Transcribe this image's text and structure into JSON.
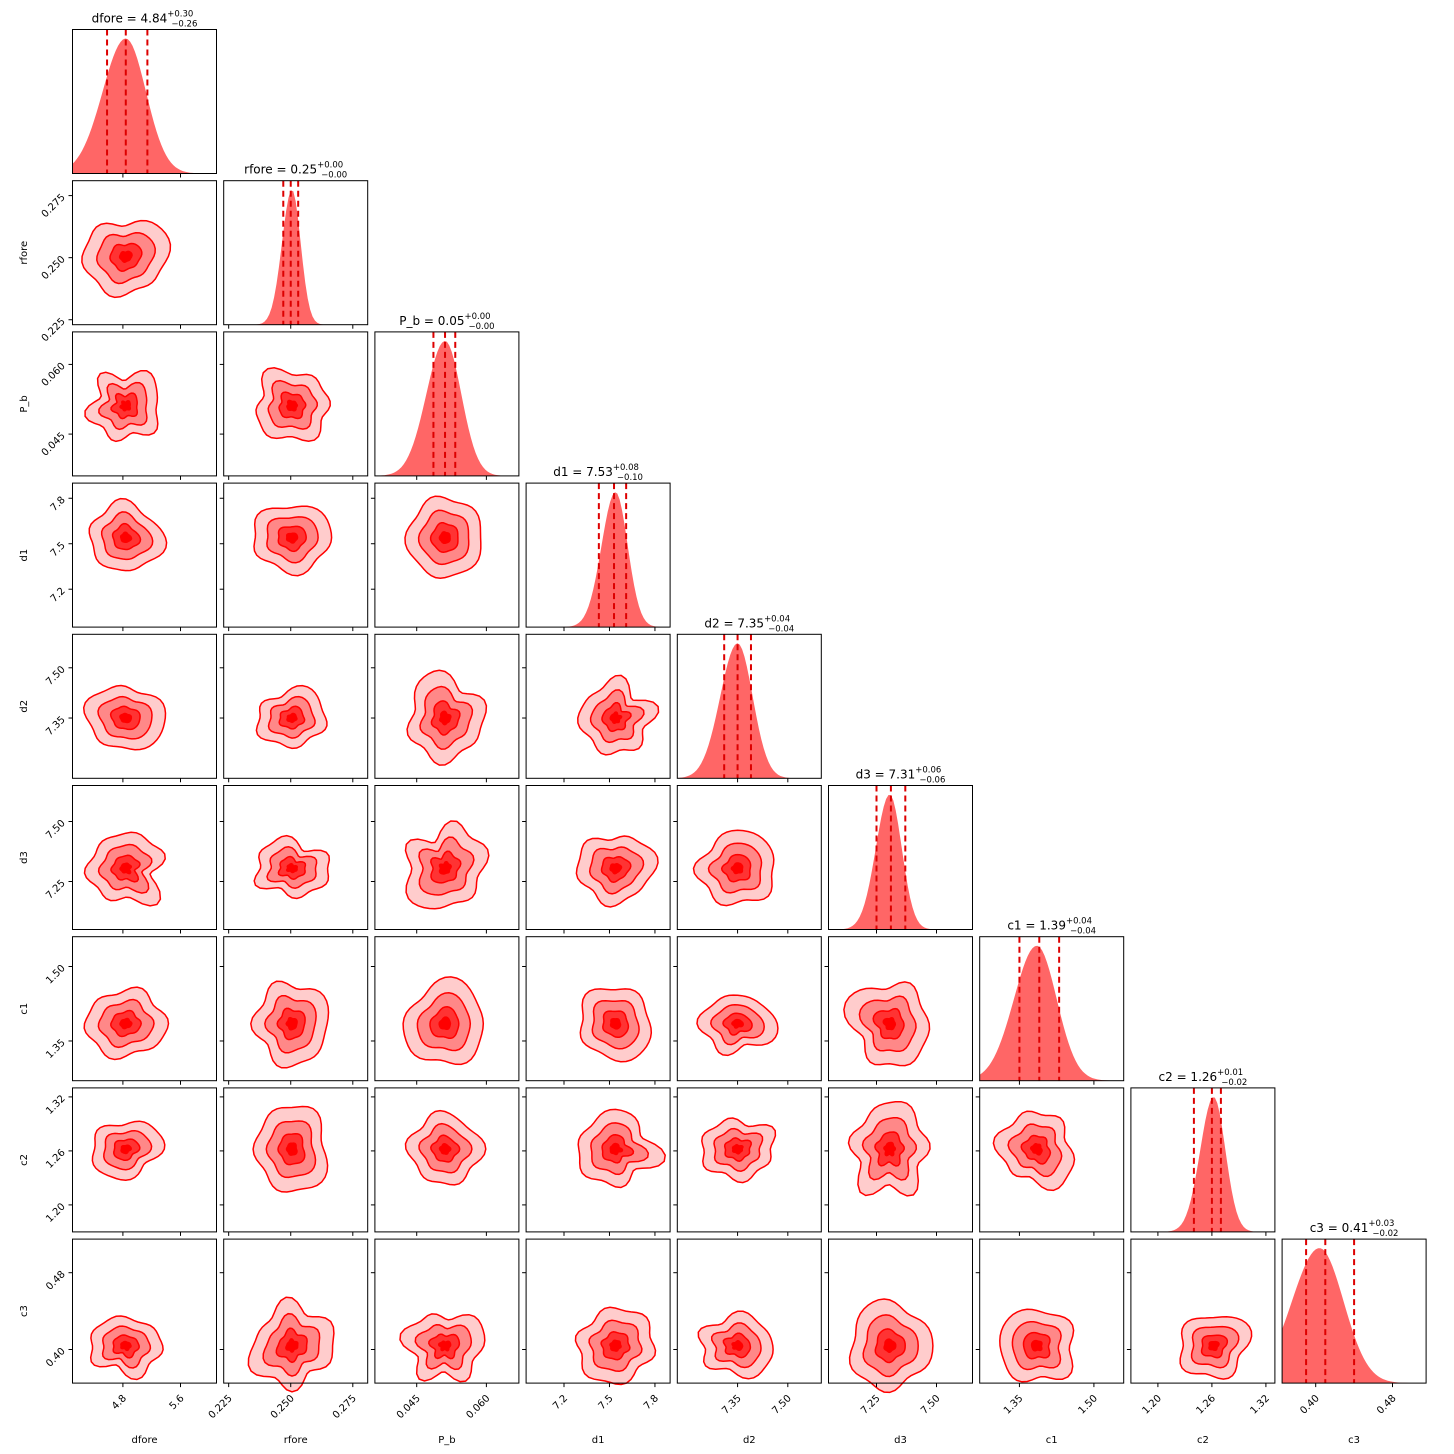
{
  "chart_data": {
    "type": "corner",
    "color": "#ff0000",
    "fill_color": "#ff6666",
    "quantile_line_style": "dashed",
    "params": [
      "dfore",
      "rfore",
      "P_b",
      "d1",
      "d2",
      "d3",
      "c1",
      "c2",
      "c3"
    ],
    "axis_labels": [
      "dfore",
      "rfore",
      "P_b",
      "d1",
      "d2",
      "d3",
      "c1",
      "c2",
      "c3"
    ],
    "titles": [
      {
        "label": "dfore",
        "median": "4.84",
        "plus": "+0.30",
        "minus": "−0.26"
      },
      {
        "label": "rfore",
        "median": "0.25",
        "plus": "+0.00",
        "minus": "−0.00"
      },
      {
        "label": "P_b",
        "median": "0.05",
        "plus": "+0.00",
        "minus": "−0.00"
      },
      {
        "label": "d1",
        "median": "7.53",
        "plus": "+0.08",
        "minus": "−0.10"
      },
      {
        "label": "d2",
        "median": "7.35",
        "plus": "+0.04",
        "minus": "−0.04"
      },
      {
        "label": "d3",
        "median": "7.31",
        "plus": "+0.06",
        "minus": "−0.06"
      },
      {
        "label": "c1",
        "median": "1.39",
        "plus": "+0.04",
        "minus": "−0.04"
      },
      {
        "label": "c2",
        "median": "1.26",
        "plus": "+0.01",
        "minus": "−0.02"
      },
      {
        "label": "c3",
        "median": "0.41",
        "plus": "+0.03",
        "minus": "−0.02"
      }
    ],
    "ranges": [
      [
        4.1,
        6.1
      ],
      [
        0.223,
        0.281
      ],
      [
        0.036,
        0.067
      ],
      [
        6.95,
        7.9
      ],
      [
        7.17,
        7.6
      ],
      [
        7.05,
        7.65
      ],
      [
        1.27,
        1.56
      ],
      [
        1.17,
        1.33
      ],
      [
        0.365,
        0.515
      ]
    ],
    "ticks": [
      [
        "4.8",
        "5.6"
      ],
      [
        "0.225",
        "0.250",
        "0.275"
      ],
      [
        "0.045",
        "0.060"
      ],
      [
        "7.2",
        "7.5",
        "7.8"
      ],
      [
        "7.35",
        "7.50"
      ],
      [
        "7.25",
        "7.50"
      ],
      [
        "1.35",
        "1.50"
      ],
      [
        "1.20",
        "1.26",
        "1.32"
      ],
      [
        "0.40",
        "0.48"
      ]
    ],
    "y_ticks": [
      [],
      [
        "0.225",
        "0.250",
        "0.275"
      ],
      [
        "0.045",
        "0.060"
      ],
      [
        "7.2",
        "7.5",
        "7.8"
      ],
      [
        "7.35",
        "7.50"
      ],
      [
        "7.25",
        "7.50"
      ],
      [
        "1.35",
        "1.50"
      ],
      [
        "1.20",
        "1.26",
        "1.32"
      ],
      [
        "0.40",
        "0.48"
      ]
    ],
    "quantiles": [
      [
        4.58,
        4.84,
        5.14
      ],
      [
        0.247,
        0.25,
        0.253
      ],
      [
        0.0486,
        0.0511,
        0.0533
      ],
      [
        7.43,
        7.53,
        7.61
      ],
      [
        7.31,
        7.35,
        7.39
      ],
      [
        7.25,
        7.31,
        7.37
      ],
      [
        1.35,
        1.39,
        1.43
      ],
      [
        1.24,
        1.26,
        1.27
      ],
      [
        0.39,
        0.41,
        0.44
      ]
    ],
    "centers": [
      4.84,
      0.2505,
      0.0511,
      7.54,
      7.35,
      7.305,
      1.385,
      1.262,
      0.404
    ],
    "spreads": [
      0.28,
      0.0035,
      0.0035,
      0.08,
      0.045,
      0.05,
      0.04,
      0.013,
      0.025
    ]
  }
}
